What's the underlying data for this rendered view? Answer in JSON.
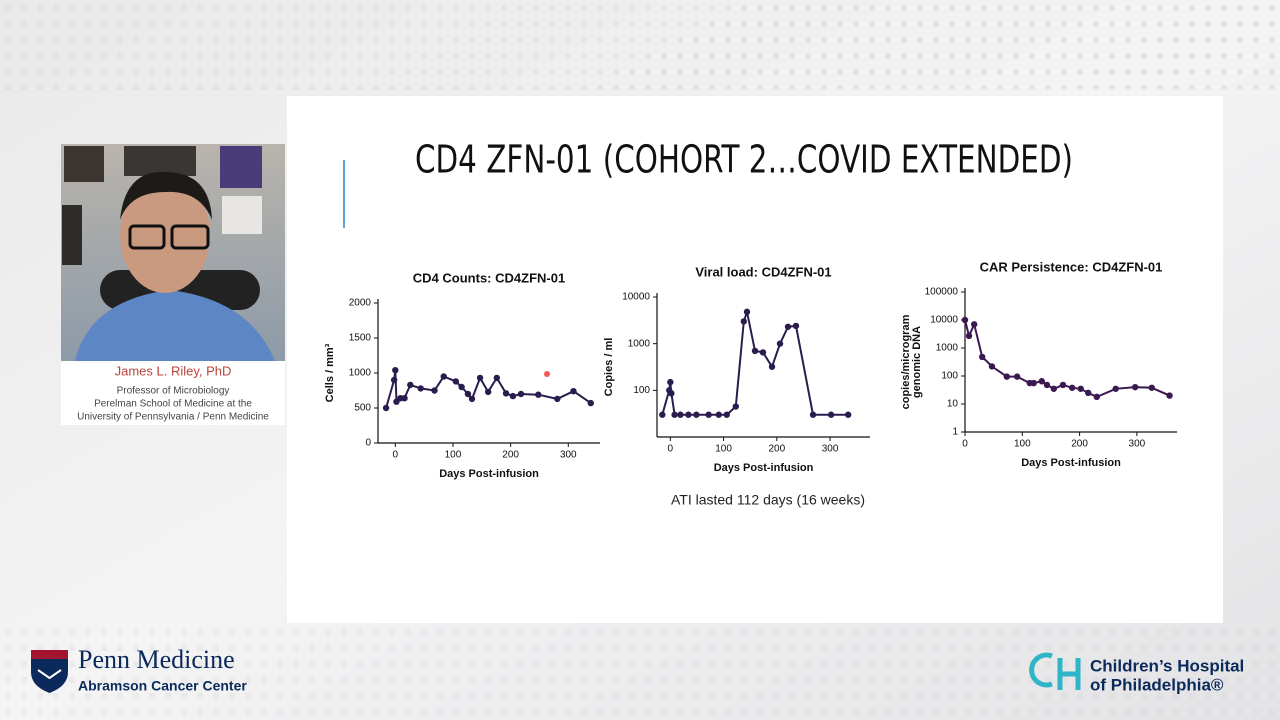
{
  "speaker": {
    "name": "James L. Riley, PhD",
    "lines": [
      "Professor of Microbiology",
      "Perelman School of Medicine at the",
      "University of Pennsylvania / Penn Medicine"
    ]
  },
  "slide": {
    "title": "CD4 ZFN-01 (COHORT 2…COVID EXTENDED)",
    "caption": "ATI lasted 112 days (16 weeks)"
  },
  "chart_data": [
    {
      "type": "line",
      "title": "CD4 Counts: CD4ZFN-01",
      "xlabel": "Days Post-infusion",
      "ylabel": [
        "Cells / mm³"
      ],
      "color": "#2a1d4e",
      "x": [
        -16,
        -2,
        0,
        2,
        9,
        16,
        26,
        44,
        68,
        84,
        105,
        115,
        126,
        133,
        147,
        161,
        176,
        192,
        204,
        218,
        248,
        281,
        309,
        339
      ],
      "values": [
        500,
        900,
        1040,
        590,
        640,
        640,
        830,
        780,
        750,
        950,
        880,
        800,
        700,
        630,
        930,
        730,
        930,
        710,
        670,
        700,
        690,
        630,
        740,
        570
      ],
      "xlim": [
        -30,
        355
      ],
      "xticks": [
        0,
        100,
        200,
        300
      ],
      "ylim": [
        0,
        2000
      ],
      "yticks": [
        0,
        500,
        1000,
        1500,
        2000
      ]
    },
    {
      "type": "line",
      "title": "Viral load: CD4ZFN-01",
      "xlabel": "Days Post-infusion",
      "ylabel": [
        "Copies / ml"
      ],
      "color": "#2a1d4e",
      "yscale": "log",
      "x": [
        -15,
        -2,
        0,
        2,
        8,
        19,
        34,
        49,
        72,
        91,
        106,
        123,
        138,
        144,
        159,
        174,
        191,
        206,
        221,
        236,
        268,
        302,
        334
      ],
      "values": [
        30,
        100,
        150,
        86,
        30,
        30,
        30,
        30,
        30,
        30,
        30,
        45,
        3000,
        4800,
        700,
        650,
        320,
        1000,
        2300,
        2400,
        30,
        30,
        30
      ],
      "xlim": [
        -25,
        375
      ],
      "xticks": [
        0,
        100,
        200,
        300
      ],
      "ylim": [
        10,
        10000
      ],
      "yticks": [
        100,
        1000,
        10000
      ]
    },
    {
      "type": "line",
      "title": "CAR Persistence: CD4ZFN-01",
      "xlabel": "Days Post-infusion",
      "ylabel": [
        "copies/microgram",
        "genomic DNA"
      ],
      "color": "#3a1850",
      "yscale": "log",
      "x": [
        0,
        7,
        16,
        30,
        47,
        73,
        91,
        113,
        120,
        134,
        143,
        155,
        171,
        187,
        202,
        215,
        230,
        263,
        297,
        326,
        357
      ],
      "values": [
        10000,
        2700,
        7000,
        480,
        220,
        95,
        95,
        56,
        56,
        65,
        48,
        35,
        48,
        38,
        35,
        25,
        18,
        35,
        40,
        38,
        20
      ],
      "xlim": [
        0,
        370
      ],
      "xticks": [
        0,
        100,
        200,
        300
      ],
      "ylim": [
        1,
        100000
      ],
      "yticks": [
        1,
        10,
        100,
        1000,
        10000,
        100000
      ]
    }
  ],
  "logos": {
    "penn": [
      "Penn Medicine",
      "Abramson Cancer Center"
    ],
    "chop": [
      "Children’s Hospital",
      "of Philadelphia®"
    ]
  }
}
